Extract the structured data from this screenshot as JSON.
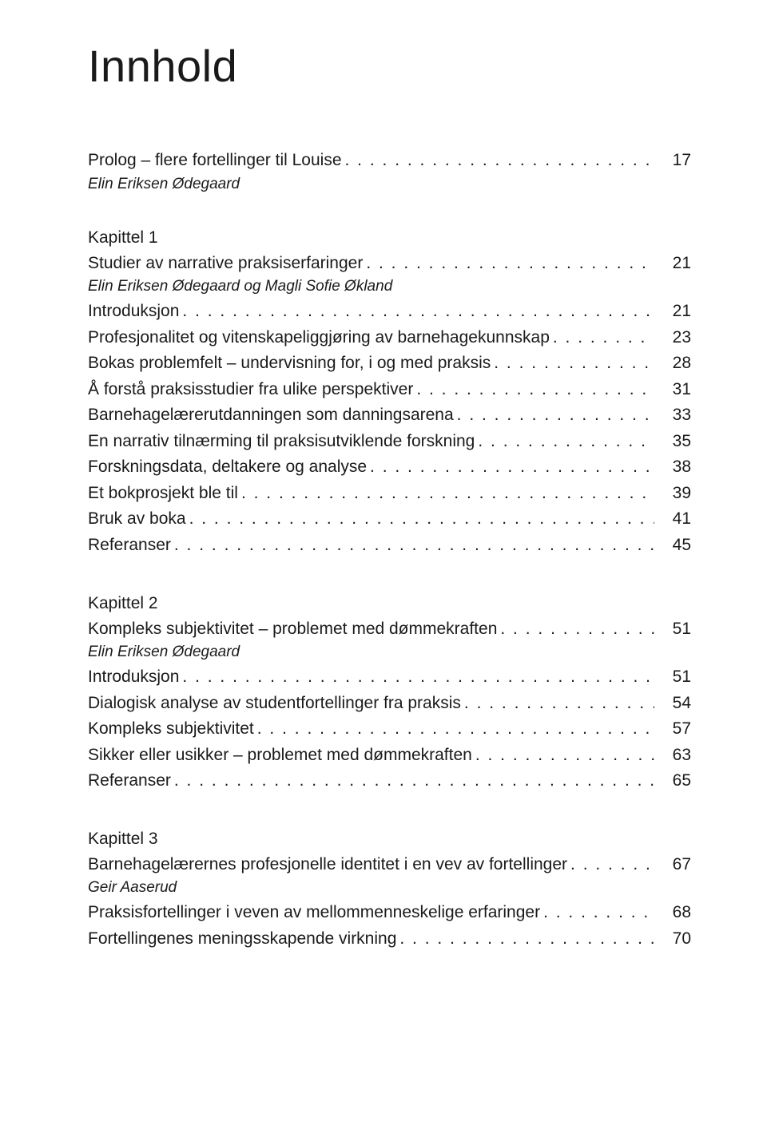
{
  "page_title": "Innhold",
  "leader_dots": ". . . . . . . . . . . . . . . . . . . . . . . . . . . . . . . . . . . . . . . . . . . . . . . . . . . . . . . . . . . . . . . . . . . . . . . . . . . . . . . . . . . . . . . . . . . . . . . . . . . . . . . . . . . . . . . . . . . . . . . . . . . . . . . . . . . . . . . . . . . . . . . . . . . .",
  "blocks": [
    {
      "rows": [
        {
          "kind": "title",
          "label": "Prolog – flere fortellinger til Louise",
          "page": "17"
        }
      ],
      "after": [
        {
          "kind": "author",
          "text": "Elin Eriksen Ødegaard"
        }
      ]
    },
    {
      "pre": [
        {
          "kind": "chapter",
          "text": "Kapittel 1"
        }
      ],
      "rows": [
        {
          "kind": "title",
          "label": "Studier av narrative praksiserfaringer",
          "page": "21"
        }
      ],
      "after": [
        {
          "kind": "author",
          "text": "Elin Eriksen Ødegaard og Magli Sofie Økland"
        }
      ],
      "rows2": [
        {
          "kind": "entry",
          "label": "Introduksjon",
          "page": "21"
        },
        {
          "kind": "entry",
          "label": "Profesjonalitet og vitenskapeliggjøring av barnehagekunnskap",
          "page": "23"
        },
        {
          "kind": "entry",
          "label": "Bokas problemfelt – undervisning for, i og med praksis",
          "page": "28"
        },
        {
          "kind": "entry",
          "label": "Å forstå praksisstudier fra ulike perspektiver",
          "page": "31"
        },
        {
          "kind": "entry",
          "label": "Barnehagelærerutdanningen som danningsarena",
          "page": "33"
        },
        {
          "kind": "entry",
          "label": "En narrativ tilnærming til praksisutviklende forskning",
          "page": "35"
        },
        {
          "kind": "entry",
          "label": "Forskningsdata, deltakere og analyse",
          "page": "38"
        },
        {
          "kind": "entry",
          "label": "Et bokprosjekt ble til",
          "page": "39"
        },
        {
          "kind": "entry",
          "label": "Bruk av boka",
          "page": "41"
        },
        {
          "kind": "entry",
          "label": "Referanser",
          "page": "45"
        }
      ]
    },
    {
      "pre": [
        {
          "kind": "chapter",
          "text": "Kapittel 2"
        }
      ],
      "rows": [
        {
          "kind": "title",
          "label": "Kompleks subjektivitet – problemet med dømmekraften",
          "page": "51"
        }
      ],
      "after": [
        {
          "kind": "author",
          "text": "Elin Eriksen Ødegaard"
        }
      ],
      "rows2": [
        {
          "kind": "entry",
          "label": "Introduksjon",
          "page": "51"
        },
        {
          "kind": "entry",
          "label": "Dialogisk analyse av studentfortellinger fra praksis",
          "page": "54"
        },
        {
          "kind": "entry",
          "label": "Kompleks subjektivitet",
          "page": "57"
        },
        {
          "kind": "entry",
          "label": "Sikker eller usikker – problemet med dømmekraften",
          "page": "63"
        },
        {
          "kind": "entry",
          "label": "Referanser",
          "page": "65"
        }
      ]
    },
    {
      "pre": [
        {
          "kind": "chapter",
          "text": "Kapittel 3"
        }
      ],
      "rows": [
        {
          "kind": "title",
          "label": "Barnehagelærernes profesjonelle identitet i en vev av fortellinger",
          "page": "67"
        }
      ],
      "after": [
        {
          "kind": "author",
          "text": "Geir Aaserud"
        }
      ],
      "rows2": [
        {
          "kind": "entry",
          "label": "Praksisfortellinger i veven av mellommenneskelige erfaringer",
          "page": "68"
        },
        {
          "kind": "entry",
          "label": "Fortellingenes meningsskapende virkning",
          "page": "70"
        }
      ]
    }
  ]
}
